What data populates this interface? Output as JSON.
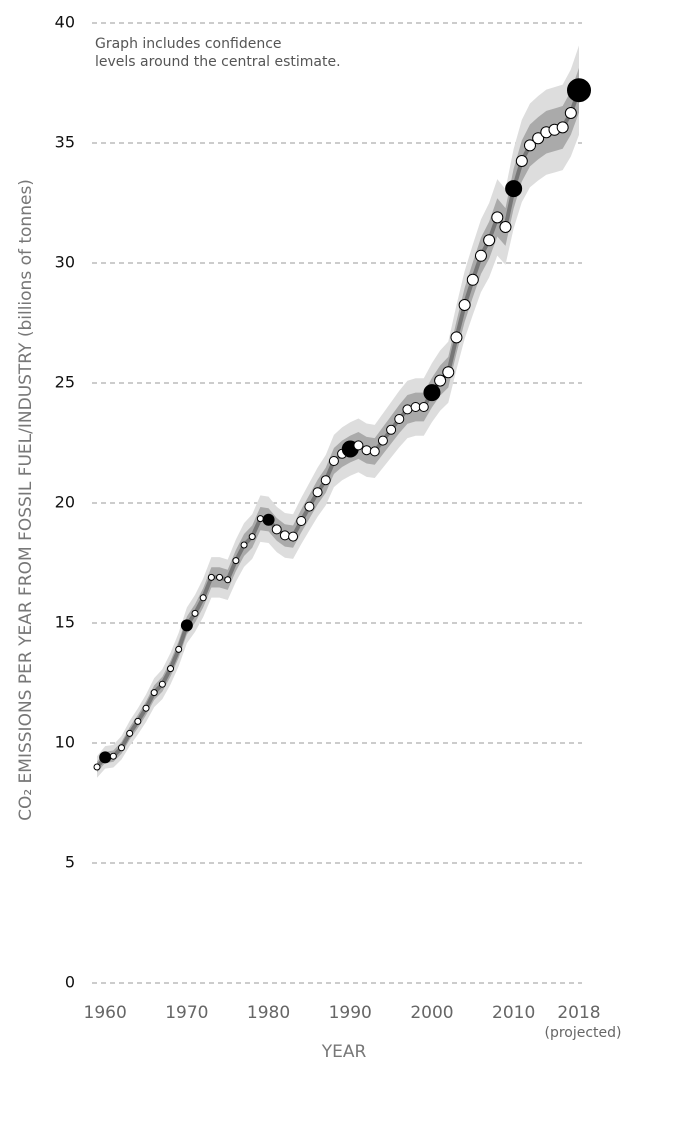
{
  "chart_data": {
    "type": "line",
    "annotation": [
      "Graph includes confidence",
      "levels around the central estimate."
    ],
    "ylabel": "CO₂ EMISSIONS PER YEAR FROM FOSSIL FUEL/INDUSTRY (billions of tonnes)",
    "xlabel": "YEAR",
    "x_note": "(projected)",
    "x": [
      1959,
      1960,
      1961,
      1962,
      1963,
      1964,
      1965,
      1966,
      1967,
      1968,
      1969,
      1970,
      1971,
      1972,
      1973,
      1974,
      1975,
      1976,
      1977,
      1978,
      1979,
      1980,
      1981,
      1982,
      1983,
      1984,
      1985,
      1986,
      1987,
      1988,
      1989,
      1990,
      1991,
      1992,
      1993,
      1994,
      1995,
      1996,
      1997,
      1998,
      1999,
      2000,
      2001,
      2002,
      2003,
      2004,
      2005,
      2006,
      2007,
      2008,
      2009,
      2010,
      2011,
      2012,
      2013,
      2014,
      2015,
      2016,
      2017,
      2018
    ],
    "series": [
      {
        "name": "CO₂ emissions",
        "color": "#777777",
        "values": [
          9.0,
          9.4,
          9.45,
          9.8,
          10.4,
          10.9,
          11.45,
          12.1,
          12.45,
          13.1,
          13.9,
          14.9,
          15.4,
          16.05,
          16.9,
          16.9,
          16.8,
          17.6,
          18.25,
          18.6,
          19.35,
          19.3,
          18.9,
          18.65,
          18.6,
          19.25,
          19.85,
          20.45,
          20.95,
          21.75,
          22.05,
          22.25,
          22.4,
          22.2,
          22.15,
          22.6,
          23.05,
          23.5,
          23.9,
          24.0,
          24.0,
          24.6,
          25.1,
          25.45,
          26.9,
          28.25,
          29.3,
          30.3,
          30.95,
          31.9,
          31.5,
          33.1,
          34.25,
          34.9,
          35.2,
          35.45,
          35.55,
          35.65,
          36.25,
          37.2
        ]
      }
    ],
    "confidence_pct": [
      2.5,
      5
    ],
    "band_colors": [
      "#aaaaaa",
      "#dddddd"
    ],
    "xlim": [
      1959,
      2018
    ],
    "xticks": [
      1960,
      1970,
      1980,
      1990,
      2000,
      2010,
      2018
    ],
    "ylim": [
      0,
      40
    ],
    "yticks": [
      0,
      5,
      10,
      15,
      20,
      25,
      30,
      35,
      40
    ],
    "grid": true
  }
}
